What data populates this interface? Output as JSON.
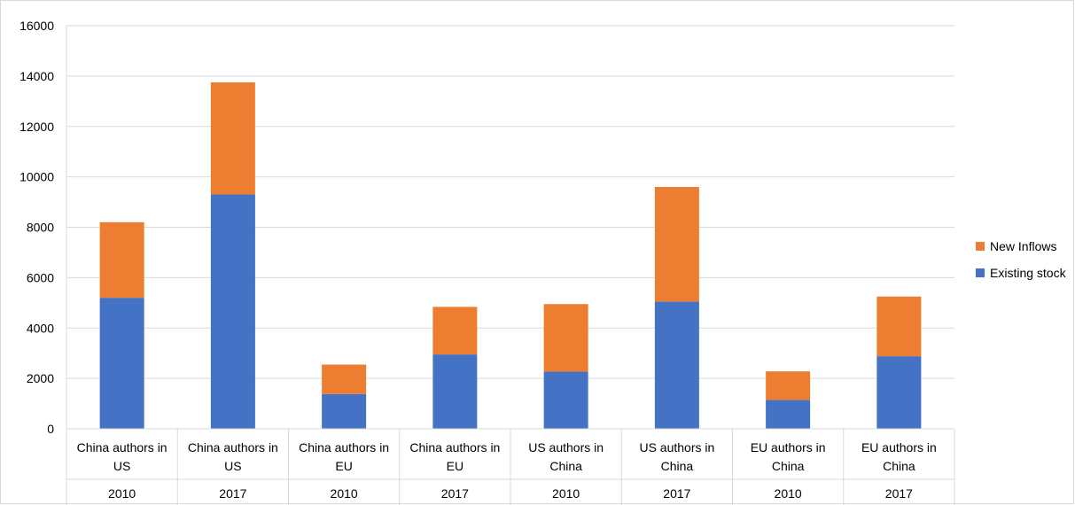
{
  "chart_data": {
    "type": "bar",
    "stacked": true,
    "categories": [
      {
        "label": "China authors in US",
        "year": "2010"
      },
      {
        "label": "China authors in US",
        "year": "2017"
      },
      {
        "label": "China authors in EU",
        "year": "2010"
      },
      {
        "label": "China authors in EU",
        "year": "2017"
      },
      {
        "label": "US authors in China",
        "year": "2010"
      },
      {
        "label": "US authors in China",
        "year": "2017"
      },
      {
        "label": "EU authors in China",
        "year": "2010"
      },
      {
        "label": "EU authors in China",
        "year": "2017"
      }
    ],
    "series": [
      {
        "name": "Existing stock",
        "color": "#4472C4",
        "values": [
          5200,
          9300,
          1380,
          2950,
          2270,
          5050,
          1150,
          2880
        ]
      },
      {
        "name": "New Inflows",
        "color": "#ED7D31",
        "values": [
          3000,
          4450,
          1170,
          1890,
          2680,
          4550,
          1130,
          2370
        ]
      }
    ],
    "title": "",
    "xlabel": "",
    "ylabel": "",
    "ylim": [
      0,
      16000
    ],
    "yticks": [
      0,
      2000,
      4000,
      6000,
      8000,
      10000,
      12000,
      14000,
      16000
    ],
    "grid": true,
    "legend_position": "right"
  }
}
